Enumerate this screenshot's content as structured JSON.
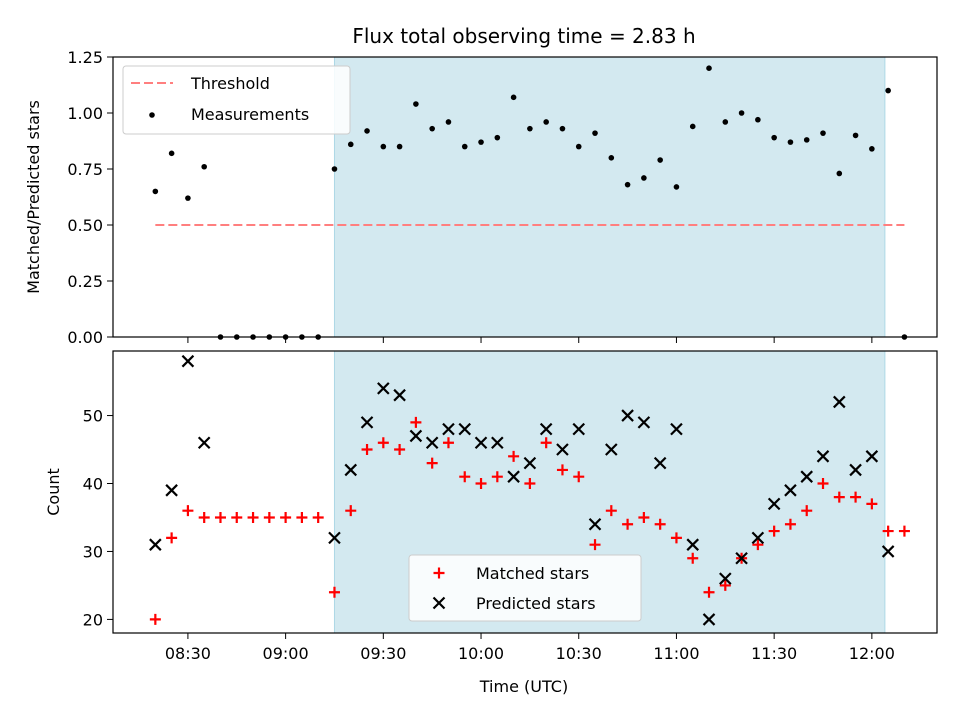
{
  "chart_data": [
    {
      "type": "scatter",
      "title": "Flux total observing time = 2.83 h",
      "xlabel": "",
      "ylabel": "Matched/Predicted stars",
      "xlim": [
        "08:07",
        "12:20"
      ],
      "ylim": [
        0,
        1.25
      ],
      "yticks": [
        "0.00",
        "0.25",
        "0.50",
        "0.75",
        "1.00",
        "1.25"
      ],
      "observing_window": [
        "09:15",
        "12:04"
      ],
      "shade_color": "#d3e9f0",
      "legend_position": "top-left",
      "legend": [
        {
          "label": "Threshold",
          "style": "dashed-line",
          "color": "#ff7f7f"
        },
        {
          "label": "Measurements",
          "style": "dot",
          "color": "#000000"
        }
      ],
      "threshold": {
        "y": 0.5,
        "x_range": [
          "08:20",
          "12:10"
        ]
      },
      "series": [
        {
          "name": "Measurements",
          "x": [
            "08:20",
            "08:25",
            "08:30",
            "08:35",
            "08:40",
            "08:45",
            "08:50",
            "08:55",
            "09:00",
            "09:05",
            "09:10",
            "09:15",
            "09:20",
            "09:25",
            "09:30",
            "09:35",
            "09:40",
            "09:45",
            "09:50",
            "09:55",
            "10:00",
            "10:05",
            "10:10",
            "10:15",
            "10:20",
            "10:25",
            "10:30",
            "10:35",
            "10:40",
            "10:45",
            "10:50",
            "10:55",
            "11:00",
            "11:05",
            "11:10",
            "11:15",
            "11:20",
            "11:25",
            "11:30",
            "11:35",
            "11:40",
            "11:45",
            "11:50",
            "11:55",
            "12:00",
            "12:05",
            "12:10"
          ],
          "y": [
            0.65,
            0.82,
            0.62,
            0.76,
            0.0,
            0.0,
            0.0,
            0.0,
            0.0,
            0.0,
            0.0,
            0.75,
            0.86,
            0.92,
            0.85,
            0.85,
            1.04,
            0.93,
            0.96,
            0.85,
            0.87,
            0.89,
            1.07,
            0.93,
            0.96,
            0.93,
            0.85,
            0.91,
            0.8,
            0.68,
            0.71,
            0.79,
            0.67,
            0.94,
            1.2,
            0.96,
            1.0,
            0.97,
            0.89,
            0.87,
            0.88,
            0.91,
            0.73,
            0.9,
            0.84,
            1.1,
            0.0
          ]
        }
      ]
    },
    {
      "type": "scatter",
      "title": "",
      "xlabel": "Time (UTC)",
      "ylabel": "Count",
      "xlim": [
        "08:07",
        "12:20"
      ],
      "ylim": [
        18,
        59.5
      ],
      "yticks": [
        20,
        30,
        40,
        50
      ],
      "xticks": [
        "08:30",
        "09:00",
        "09:30",
        "10:00",
        "10:30",
        "11:00",
        "11:30",
        "12:00"
      ],
      "observing_window": [
        "09:15",
        "12:04"
      ],
      "legend_position": "bottom-center",
      "legend": [
        {
          "label": "Matched stars",
          "style": "plus",
          "color": "#ff0000"
        },
        {
          "label": "Predicted stars",
          "style": "cross",
          "color": "#000000"
        }
      ],
      "series": [
        {
          "name": "Matched stars",
          "color": "#ff0000",
          "x": [
            "08:20",
            "08:25",
            "08:30",
            "08:35",
            "08:40",
            "08:45",
            "08:50",
            "08:55",
            "09:00",
            "09:05",
            "09:10",
            "09:15",
            "09:20",
            "09:25",
            "09:30",
            "09:35",
            "09:40",
            "09:45",
            "09:50",
            "09:55",
            "10:00",
            "10:05",
            "10:10",
            "10:15",
            "10:20",
            "10:25",
            "10:30",
            "10:35",
            "10:40",
            "10:45",
            "10:50",
            "10:55",
            "11:00",
            "11:05",
            "11:10",
            "11:15",
            "11:20",
            "11:25",
            "11:30",
            "11:35",
            "11:40",
            "11:45",
            "11:50",
            "11:55",
            "12:00",
            "12:05",
            "12:10"
          ],
          "y": [
            20,
            32,
            36,
            35,
            35,
            35,
            35,
            35,
            35,
            35,
            35,
            24,
            36,
            45,
            46,
            45,
            49,
            43,
            46,
            41,
            40,
            41,
            44,
            40,
            46,
            42,
            41,
            31,
            36,
            34,
            35,
            34,
            32,
            29,
            24,
            25,
            29,
            31,
            33,
            34,
            36,
            40,
            38,
            38,
            37,
            33,
            33
          ]
        },
        {
          "name": "Predicted stars",
          "color": "#000000",
          "x": [
            "08:20",
            "08:25",
            "08:30",
            "08:35",
            "09:15",
            "09:20",
            "09:25",
            "09:30",
            "09:35",
            "09:40",
            "09:45",
            "09:50",
            "09:55",
            "10:00",
            "10:05",
            "10:10",
            "10:15",
            "10:20",
            "10:25",
            "10:30",
            "10:35",
            "10:40",
            "10:45",
            "10:50",
            "10:55",
            "11:00",
            "11:05",
            "11:10",
            "11:15",
            "11:20",
            "11:25",
            "11:30",
            "11:35",
            "11:40",
            "11:45",
            "11:50",
            "11:55",
            "12:00",
            "12:05"
          ],
          "y": [
            31,
            39,
            58,
            46,
            32,
            42,
            49,
            54,
            53,
            47,
            46,
            48,
            48,
            46,
            46,
            41,
            43,
            48,
            45,
            48,
            34,
            45,
            50,
            49,
            43,
            48,
            31,
            20,
            26,
            29,
            32,
            37,
            39,
            41,
            44,
            52,
            42,
            44,
            30
          ]
        }
      ]
    }
  ]
}
